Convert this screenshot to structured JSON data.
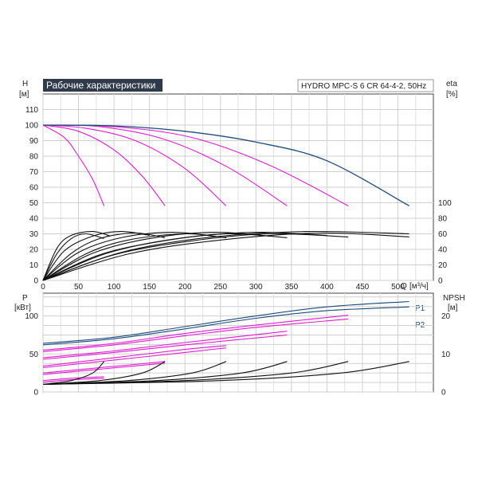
{
  "colors": {
    "blue": "#1d4a7a",
    "magenta": "#e01ccf",
    "black": "#111111",
    "grid": "#cfcfcf",
    "title_bg": "#2f3b4a"
  },
  "chart_data": [
    {
      "type": "line",
      "panel": "top",
      "title": "Рабочие характеристики",
      "model": "HYDRO MPC-S 6 CR 64-4-2, 50Hz",
      "ylabel": "H",
      "yunit": "[м]",
      "y2label": "eta",
      "y2unit": "[%]",
      "xlabel": "Q",
      "xunit": "[м³/ч]",
      "xlim": [
        0,
        550
      ],
      "ylim": [
        0,
        120
      ],
      "y2lim": [
        0,
        120
      ],
      "xticks": [
        "0",
        "50",
        "100",
        "150",
        "200",
        "250",
        "300",
        "350",
        "400",
        "450",
        "500"
      ],
      "yticks": [
        "0",
        "10",
        "20",
        "30",
        "40",
        "50",
        "60",
        "70",
        "80",
        "90",
        "100",
        "110"
      ],
      "y2ticks": [
        "0",
        "20",
        "40",
        "60",
        "80",
        "100"
      ],
      "grid": true,
      "series": [
        {
          "color": "magenta",
          "x": [
            0,
            30,
            50,
            70,
            86
          ],
          "y": [
            100,
            92,
            80,
            65,
            48
          ]
        },
        {
          "color": "magenta",
          "x": [
            0,
            50,
            100,
            140,
            172
          ],
          "y": [
            100,
            96,
            84,
            67,
            48
          ]
        },
        {
          "color": "magenta",
          "x": [
            0,
            60,
            130,
            200,
            258
          ],
          "y": [
            100,
            98,
            90,
            72,
            48
          ]
        },
        {
          "color": "magenta",
          "x": [
            0,
            80,
            170,
            260,
            344
          ],
          "y": [
            100,
            99,
            91,
            73,
            48
          ]
        },
        {
          "color": "magenta",
          "x": [
            0,
            100,
            210,
            320,
            430
          ],
          "y": [
            100,
            99,
            92,
            74,
            48
          ]
        },
        {
          "color": "blue",
          "x": [
            0,
            100,
            200,
            300,
            400,
            516
          ],
          "y": [
            100,
            99.5,
            96,
            89,
            77,
            48
          ]
        },
        {
          "color": "black",
          "x": [
            0,
            20,
            40,
            60,
            86
          ],
          "eta": [
            0,
            35,
            54,
            60,
            54
          ]
        },
        {
          "color": "black",
          "x": [
            0,
            20,
            40,
            70,
            95
          ],
          "eta": [
            0,
            42,
            58,
            63,
            57
          ]
        },
        {
          "color": "black",
          "x": [
            0,
            40,
            80,
            130,
            172
          ],
          "eta": [
            0,
            35,
            54,
            61,
            55
          ]
        },
        {
          "color": "black",
          "x": [
            0,
            30,
            70,
            110,
            150
          ],
          "eta": [
            0,
            38,
            57,
            63,
            58
          ]
        },
        {
          "color": "black",
          "x": [
            0,
            60,
            120,
            200,
            258
          ],
          "eta": [
            0,
            34,
            52,
            60,
            55
          ]
        },
        {
          "color": "black",
          "x": [
            0,
            50,
            110,
            180,
            240
          ],
          "eta": [
            0,
            36,
            55,
            62,
            57
          ]
        },
        {
          "color": "black",
          "x": [
            0,
            80,
            170,
            260,
            344
          ],
          "eta": [
            0,
            33,
            51,
            60,
            55
          ]
        },
        {
          "color": "black",
          "x": [
            0,
            70,
            150,
            240,
            320
          ],
          "eta": [
            0,
            35,
            54,
            62,
            57
          ]
        },
        {
          "color": "black",
          "x": [
            0,
            100,
            210,
            320,
            430
          ],
          "eta": [
            0,
            33,
            51,
            60,
            56
          ]
        },
        {
          "color": "black",
          "x": [
            0,
            90,
            190,
            300,
            400
          ],
          "eta": [
            0,
            35,
            54,
            62,
            58
          ]
        },
        {
          "color": "black",
          "x": [
            0,
            120,
            250,
            390,
            516
          ],
          "eta": [
            0,
            34,
            52,
            61,
            56
          ]
        },
        {
          "color": "black",
          "x": [
            0,
            110,
            230,
            370,
            516
          ],
          "eta": [
            0,
            36,
            55,
            63,
            60
          ]
        }
      ],
      "right_axis_label_positions": [
        100,
        80,
        60,
        40,
        20,
        0
      ]
    },
    {
      "type": "line",
      "panel": "bottom",
      "ylabel": "P",
      "yunit": "[кВт]",
      "y2label": "NPSH",
      "y2unit": "[м]",
      "xlim": [
        0,
        550
      ],
      "ylim": [
        0,
        130
      ],
      "y2lim": [
        0,
        26
      ],
      "yticks": [
        "0",
        "50",
        "100"
      ],
      "y2ticks": [
        "0",
        "10",
        "20"
      ],
      "legend": [
        "P1",
        "P2"
      ],
      "grid": true,
      "series": [
        {
          "name": "P1",
          "color": "blue",
          "x": [
            0,
            100,
            200,
            300,
            400,
            516
          ],
          "y": [
            64,
            72,
            86,
            100,
            112,
            119
          ]
        },
        {
          "name": "P2",
          "color": "blue",
          "x": [
            0,
            100,
            200,
            300,
            400,
            516
          ],
          "y": [
            62,
            70,
            83,
            97,
            107,
            112
          ]
        },
        {
          "color": "magenta",
          "x": [
            0,
            100,
            200,
            300,
            430
          ],
          "y": [
            55,
            64,
            77,
            88,
            101
          ]
        },
        {
          "color": "magenta",
          "x": [
            0,
            100,
            200,
            300,
            430
          ],
          "y": [
            53,
            62,
            74,
            85,
            96
          ]
        },
        {
          "color": "magenta",
          "x": [
            0,
            100,
            200,
            344
          ],
          "y": [
            45,
            54,
            65,
            80
          ]
        },
        {
          "color": "magenta",
          "x": [
            0,
            100,
            200,
            344
          ],
          "y": [
            43,
            52,
            62,
            75
          ]
        },
        {
          "color": "magenta",
          "x": [
            0,
            100,
            200,
            258
          ],
          "y": [
            34,
            45,
            56,
            61
          ]
        },
        {
          "color": "magenta",
          "x": [
            0,
            100,
            200,
            258
          ],
          "y": [
            32,
            42,
            52,
            58
          ]
        },
        {
          "color": "magenta",
          "x": [
            0,
            80,
            172
          ],
          "y": [
            25,
            32,
            40
          ]
        },
        {
          "color": "magenta",
          "x": [
            0,
            80,
            172
          ],
          "y": [
            23,
            30,
            38
          ]
        },
        {
          "color": "magenta",
          "x": [
            0,
            40,
            86
          ],
          "y": [
            15,
            18,
            20
          ]
        },
        {
          "color": "magenta",
          "x": [
            0,
            40,
            86
          ],
          "y": [
            13,
            16,
            18
          ]
        },
        {
          "color": "black",
          "npsh": true,
          "x": [
            0,
            40,
            70,
            86
          ],
          "y": [
            2,
            3,
            5,
            8
          ]
        },
        {
          "color": "black",
          "npsh": true,
          "x": [
            0,
            80,
            140,
            172
          ],
          "y": [
            2,
            3,
            5,
            8
          ]
        },
        {
          "color": "black",
          "npsh": true,
          "x": [
            0,
            120,
            210,
            258
          ],
          "y": [
            2,
            3,
            5,
            8
          ]
        },
        {
          "color": "black",
          "npsh": true,
          "x": [
            0,
            160,
            280,
            344
          ],
          "y": [
            2,
            3,
            5,
            8
          ]
        },
        {
          "color": "black",
          "npsh": true,
          "x": [
            0,
            200,
            350,
            430
          ],
          "y": [
            2,
            3,
            5,
            8
          ]
        },
        {
          "color": "black",
          "npsh": true,
          "x": [
            0,
            250,
            420,
            516
          ],
          "y": [
            2,
            3,
            5,
            8
          ]
        }
      ]
    }
  ]
}
